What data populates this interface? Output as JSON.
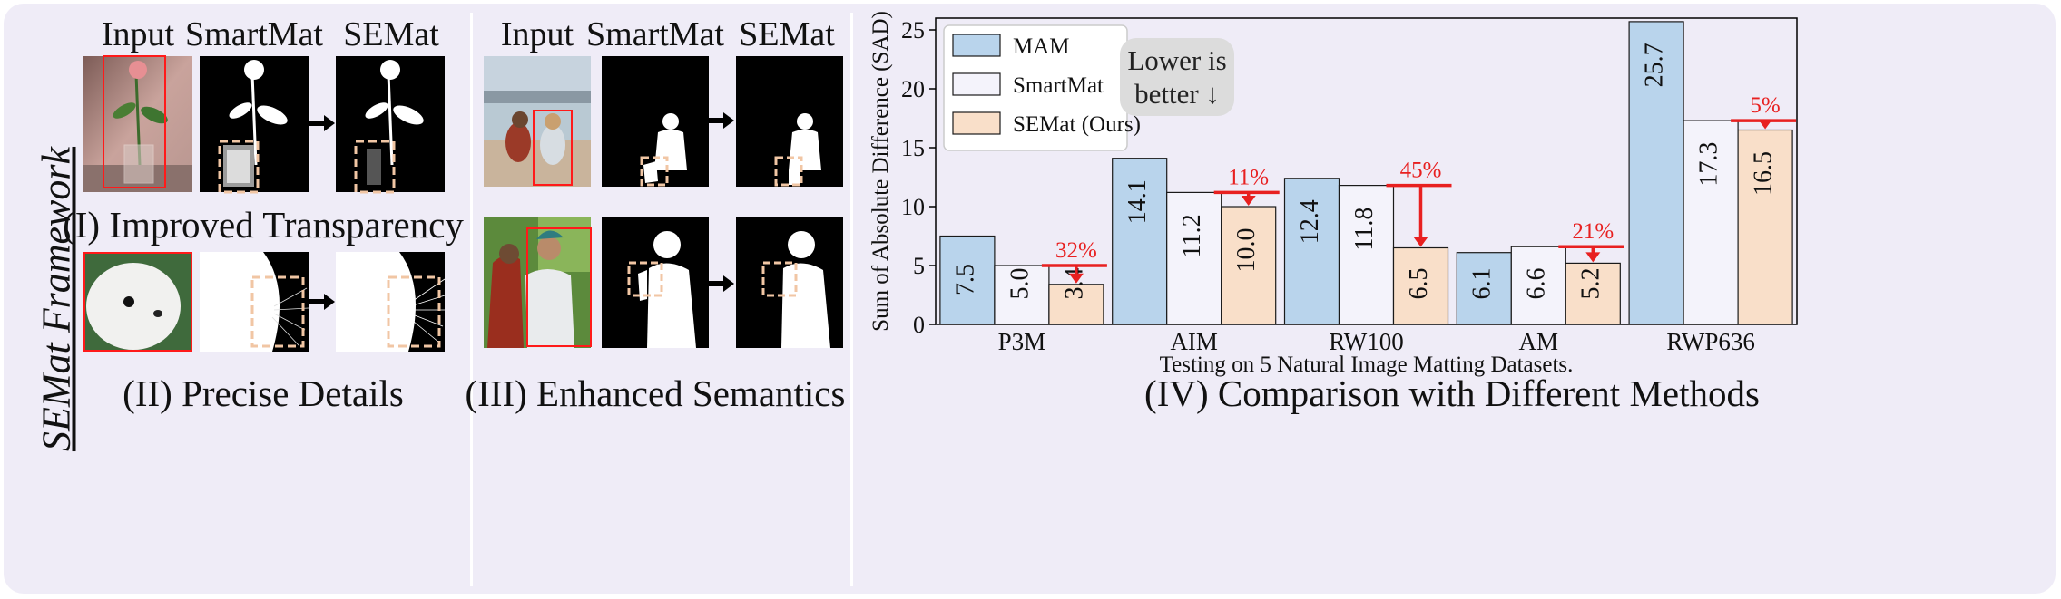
{
  "framework_title": "SEMat Framework",
  "panel1": {
    "col_input": "Input",
    "col_smartmat": "SmartMat",
    "col_semat": "SEMat",
    "caption_top": "(I) Improved Transparency",
    "caption_bottom": "(II) Precise Details"
  },
  "panel2": {
    "col_input": "Input",
    "col_smartmat": "SmartMat",
    "col_semat": "SEMat",
    "caption": "(III) Enhanced Semantics"
  },
  "panel3": {
    "caption": "(IV) Comparison with Different Methods",
    "note_line1": "Lower is",
    "note_line2": "better ↓"
  },
  "colors": {
    "mam": "#b9d4ec",
    "smartmat": "#f4f3fb",
    "semat": "#f9dfc9",
    "highlight": "#e82020",
    "box_dashed": "#f1c6a4"
  },
  "chart_data": {
    "type": "bar",
    "categories": [
      "P3M",
      "AIM",
      "RW100",
      "AM",
      "RWP636"
    ],
    "series": [
      {
        "name": "MAM",
        "values": [
          7.5,
          14.1,
          12.4,
          6.1,
          25.7
        ]
      },
      {
        "name": "SmartMat",
        "values": [
          5.0,
          11.2,
          11.8,
          6.6,
          17.3
        ]
      },
      {
        "name": "SEMat (Ours)",
        "values": [
          3.4,
          10.0,
          6.5,
          5.2,
          16.5
        ]
      }
    ],
    "improvements": [
      "32%",
      "11%",
      "45%",
      "21%",
      "5%"
    ],
    "xlabel": "Testing on 5 Natural Image Matting Datasets.",
    "ylabel": "Sum of Absolute Difference (SAD)",
    "ylim": [
      0,
      26
    ],
    "yticks": [
      0,
      5,
      10,
      15,
      20,
      25
    ],
    "legend_position": "top-left",
    "grid": false
  }
}
